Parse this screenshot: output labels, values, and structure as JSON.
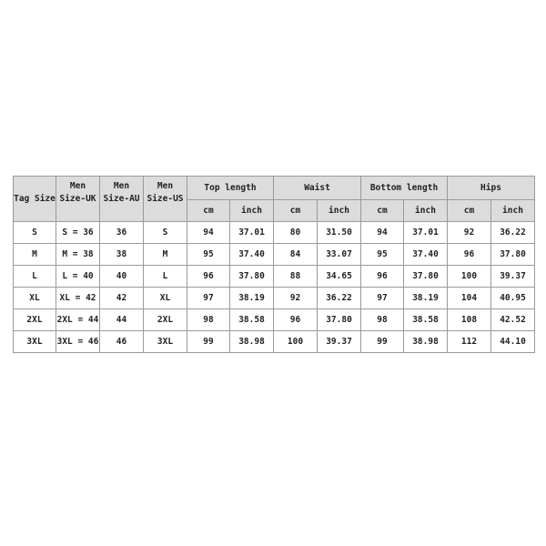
{
  "headers": {
    "tag_size": "Tag Size",
    "uk": "Men Size-UK",
    "au": "Men Size-AU",
    "us": "Men Size-US",
    "groups": [
      "Top length",
      "Waist",
      "Bottom length",
      "Hips"
    ],
    "cm": "cm",
    "inch": "inch"
  },
  "rows": [
    [
      "S",
      "S = 36",
      "36",
      "S",
      "94",
      "37.01",
      "80",
      "31.50",
      "94",
      "37.01",
      "92",
      "36.22"
    ],
    [
      "M",
      "M = 38",
      "38",
      "M",
      "95",
      "37.40",
      "84",
      "33.07",
      "95",
      "37.40",
      "96",
      "37.80"
    ],
    [
      "L",
      "L = 40",
      "40",
      "L",
      "96",
      "37.80",
      "88",
      "34.65",
      "96",
      "37.80",
      "100",
      "39.37"
    ],
    [
      "XL",
      "XL = 42",
      "42",
      "XL",
      "97",
      "38.19",
      "92",
      "36.22",
      "97",
      "38.19",
      "104",
      "40.95"
    ],
    [
      "2XL",
      "2XL = 44",
      "44",
      "2XL",
      "98",
      "38.58",
      "96",
      "37.80",
      "98",
      "38.58",
      "108",
      "42.52"
    ],
    [
      "3XL",
      "3XL = 46",
      "46",
      "3XL",
      "99",
      "38.98",
      "100",
      "39.37",
      "99",
      "38.98",
      "112",
      "44.10"
    ]
  ]
}
